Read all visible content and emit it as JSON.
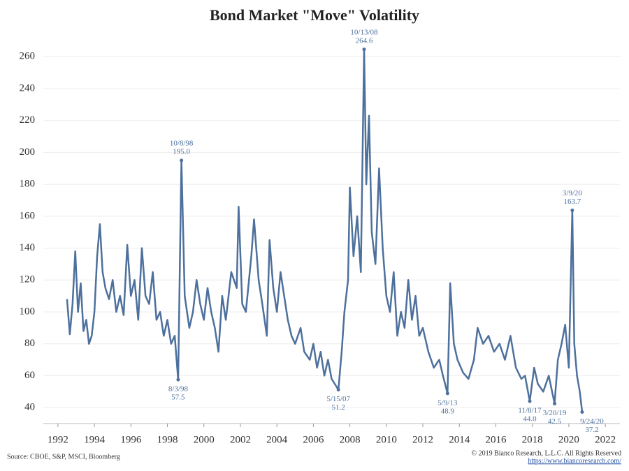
{
  "chart_data": {
    "type": "line",
    "title": "Bond Market \"Move\" Volatility",
    "source": "Source: CBOE, S&P, MSCI, Bloomberg",
    "copyright": "© 2019 Bianco Research, L.L.C. All Rights Reserved",
    "url": "https://www.biancoresearch.com/",
    "color": "#4d709c",
    "grid": true,
    "xlim": [
      1991.2,
      2022.8
    ],
    "ylim": [
      30,
      275
    ],
    "xticks": [
      1992,
      1994,
      1996,
      1998,
      2000,
      2002,
      2004,
      2006,
      2008,
      2010,
      2012,
      2014,
      2016,
      2018,
      2020,
      2022
    ],
    "yticks": [
      40,
      60,
      80,
      100,
      120,
      140,
      160,
      180,
      200,
      220,
      240,
      260
    ],
    "x": [
      1992.5,
      1992.65,
      1992.8,
      1992.95,
      1993.1,
      1993.25,
      1993.4,
      1993.55,
      1993.7,
      1993.85,
      1994.0,
      1994.15,
      1994.3,
      1994.45,
      1994.6,
      1994.8,
      1995.0,
      1995.2,
      1995.4,
      1995.6,
      1995.8,
      1996.0,
      1996.2,
      1996.4,
      1996.6,
      1996.8,
      1997.0,
      1997.2,
      1997.4,
      1997.6,
      1997.8,
      1998.0,
      1998.2,
      1998.4,
      1998.59,
      1998.77,
      1998.95,
      1999.2,
      1999.4,
      1999.6,
      1999.8,
      2000.0,
      2000.2,
      2000.4,
      2000.6,
      2000.8,
      2001.0,
      2001.2,
      2001.5,
      2001.8,
      2001.9,
      2002.1,
      2002.3,
      2002.6,
      2002.75,
      2003.0,
      2003.2,
      2003.45,
      2003.6,
      2003.8,
      2004.0,
      2004.2,
      2004.4,
      2004.6,
      2004.8,
      2005.0,
      2005.3,
      2005.5,
      2005.8,
      2006.0,
      2006.2,
      2006.4,
      2006.6,
      2006.8,
      2007.0,
      2007.37,
      2007.55,
      2007.7,
      2007.9,
      2008.0,
      2008.2,
      2008.4,
      2008.6,
      2008.78,
      2008.9,
      2009.05,
      2009.2,
      2009.4,
      2009.6,
      2009.8,
      2010.0,
      2010.2,
      2010.4,
      2010.6,
      2010.8,
      2011.0,
      2011.2,
      2011.4,
      2011.6,
      2011.8,
      2012.0,
      2012.3,
      2012.6,
      2012.9,
      2013.1,
      2013.35,
      2013.5,
      2013.7,
      2013.9,
      2014.2,
      2014.5,
      2014.8,
      2015.0,
      2015.3,
      2015.6,
      2015.9,
      2016.2,
      2016.5,
      2016.8,
      2017.1,
      2017.4,
      2017.6,
      2017.86,
      2018.1,
      2018.3,
      2018.6,
      2018.9,
      2019.22,
      2019.4,
      2019.6,
      2019.8,
      2020.0,
      2020.19,
      2020.3,
      2020.45,
      2020.6,
      2020.73
    ],
    "values": [
      108,
      86,
      105,
      138,
      100,
      118,
      88,
      95,
      80,
      85,
      100,
      135,
      155,
      125,
      115,
      108,
      120,
      100,
      110,
      98,
      142,
      110,
      120,
      95,
      140,
      110,
      105,
      125,
      95,
      100,
      85,
      95,
      80,
      85,
      57.5,
      195,
      110,
      90,
      100,
      120,
      105,
      95,
      115,
      100,
      90,
      75,
      110,
      95,
      125,
      115,
      166,
      105,
      100,
      135,
      158,
      120,
      105,
      85,
      145,
      115,
      100,
      125,
      110,
      95,
      85,
      80,
      90,
      75,
      70,
      80,
      65,
      75,
      60,
      70,
      58,
      51.2,
      75,
      100,
      120,
      178,
      135,
      160,
      125,
      264.6,
      180,
      223,
      150,
      130,
      190,
      140,
      110,
      100,
      125,
      85,
      100,
      90,
      120,
      95,
      110,
      85,
      90,
      75,
      65,
      70,
      60,
      48.9,
      118,
      80,
      70,
      62,
      58,
      70,
      90,
      80,
      85,
      75,
      80,
      70,
      85,
      65,
      58,
      60,
      44,
      65,
      55,
      50,
      60,
      42.5,
      70,
      80,
      92,
      65,
      163.7,
      80,
      60,
      50,
      37.2
    ],
    "annotations": [
      {
        "date": "10/8/98",
        "x": 1998.77,
        "value": 195,
        "label": "195.0"
      },
      {
        "date": "8/3/98",
        "x": 1998.59,
        "value": 57.5,
        "label": "57.5"
      },
      {
        "date": "10/13/08",
        "x": 2008.78,
        "value": 264.6,
        "label": "264.6"
      },
      {
        "date": "5/15/07",
        "x": 2007.37,
        "value": 51.2,
        "label": "51.2"
      },
      {
        "date": "5/9/13",
        "x": 2013.35,
        "value": 48.9,
        "label": "48.9"
      },
      {
        "date": "11/8/17",
        "x": 2017.86,
        "value": 44,
        "label": "44.0"
      },
      {
        "date": "3/20/19",
        "x": 2019.22,
        "value": 42.5,
        "label": "42.5"
      },
      {
        "date": "3/9/20",
        "x": 2020.19,
        "value": 163.7,
        "label": "163.7"
      },
      {
        "date": "9/24/20",
        "x": 2020.73,
        "value": 37.2,
        "label": "37.2"
      }
    ]
  }
}
